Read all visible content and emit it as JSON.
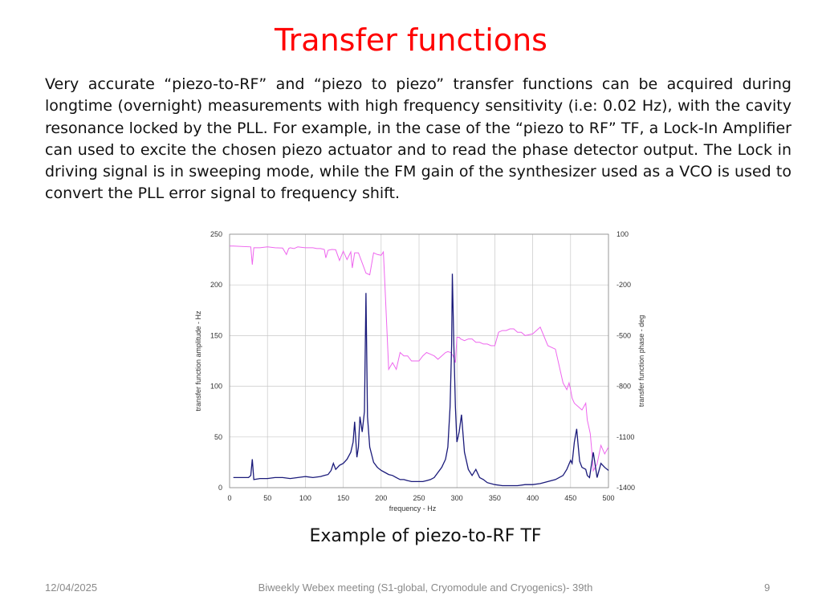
{
  "slide": {
    "title": "Transfer functions",
    "paragraph": "Very accurate “piezo-to-RF” and “piezo to piezo” transfer functions can be acquired during longtime (overnight) measurements with high frequency sensitivity (i.e: 0.02 Hz), with the cavity resonance locked by the PLL. For example, in the case of the “piezo to RF” TF, a Lock-In Amplifier can used to excite the chosen piezo actuator and to read the phase detector output. The Lock in driving signal is in sweeping mode, while the FM gain of the synthesizer used as a VCO is used to convert the PLL error signal to frequency shift.",
    "caption": "Example of piezo-to-RF TF",
    "footer_date": "12/04/2025",
    "footer_text": "Biweekly Webex meeting (S1-global, Cryomodule and Cryogenics)- 39th",
    "page_number": "9"
  },
  "colors": {
    "title": "#ff0000",
    "amplitude": "#1a1a7a",
    "phase": "#ee66ee",
    "grid": "#c8c8c8"
  },
  "chart_data": {
    "type": "line",
    "xlabel": "frequency - Hz",
    "ylabel": "transfer function amplitude - Hz",
    "y2label": "transfer function phase - deg",
    "xlim": [
      0,
      500
    ],
    "ylim": [
      0,
      250
    ],
    "y2lim": [
      -1400,
      100
    ],
    "xticks": [
      "0",
      "50",
      "100",
      "150",
      "200",
      "250",
      "300",
      "350",
      "400",
      "450",
      "500"
    ],
    "yticks": [
      "0",
      "50",
      "100",
      "150",
      "200",
      "250"
    ],
    "y2ticks": [
      "-1400",
      "-1100",
      "-800",
      "-500",
      "-200",
      "100"
    ],
    "grid": true,
    "series": [
      {
        "axis": "left",
        "x": [
          5,
          25,
          28,
          30,
          32,
          40,
          50,
          60,
          70,
          80,
          90,
          100,
          110,
          120,
          125,
          130,
          134,
          137,
          140,
          145,
          150,
          155,
          160,
          163,
          165,
          168,
          170,
          172,
          175,
          178,
          180,
          182,
          185,
          190,
          195,
          200,
          205,
          210,
          215,
          220,
          225,
          230,
          235,
          240,
          245,
          250,
          255,
          260,
          265,
          270,
          275,
          280,
          285,
          288,
          291,
          293,
          294,
          296,
          298,
          300,
          303,
          306,
          310,
          315,
          320,
          325,
          330,
          335,
          340,
          350,
          360,
          370,
          380,
          390,
          400,
          410,
          420,
          430,
          440,
          445,
          450,
          452,
          455,
          458,
          460,
          462,
          465,
          470,
          472,
          475,
          480,
          485,
          490,
          495,
          500
        ],
        "y": [
          10,
          10,
          12,
          28,
          8,
          9,
          9,
          10,
          10,
          9,
          10,
          11,
          10,
          11,
          12,
          13,
          17,
          24,
          18,
          22,
          24,
          28,
          35,
          45,
          65,
          30,
          40,
          70,
          55,
          75,
          192,
          70,
          40,
          25,
          20,
          17,
          15,
          13,
          12,
          10,
          8,
          8,
          7,
          6,
          6,
          6,
          6,
          7,
          8,
          10,
          15,
          20,
          28,
          40,
          80,
          140,
          211,
          140,
          80,
          45,
          55,
          72,
          35,
          18,
          12,
          18,
          10,
          8,
          5,
          3,
          2,
          2,
          2,
          3,
          3,
          4,
          6,
          8,
          12,
          18,
          27,
          24,
          45,
          58,
          42,
          26,
          20,
          18,
          12,
          10,
          35,
          10,
          24,
          20,
          17
        ]
      },
      {
        "axis": "right",
        "x": [
          0,
          5,
          28,
          30,
          32,
          40,
          50,
          60,
          70,
          75,
          78,
          80,
          85,
          90,
          95,
          100,
          105,
          110,
          115,
          120,
          125,
          127,
          130,
          135,
          140,
          145,
          150,
          155,
          160,
          162,
          165,
          170,
          175,
          180,
          185,
          190,
          195,
          200,
          203,
          205,
          210,
          215,
          220,
          225,
          230,
          235,
          240,
          245,
          250,
          255,
          260,
          265,
          270,
          275,
          280,
          285,
          288,
          292,
          295,
          298,
          300,
          303,
          305,
          310,
          315,
          320,
          325,
          330,
          335,
          340,
          345,
          350,
          355,
          360,
          365,
          370,
          375,
          380,
          385,
          390,
          400,
          410,
          420,
          430,
          440,
          445,
          448,
          450,
          452,
          455,
          460,
          465,
          470,
          472,
          474,
          476,
          478,
          480,
          485,
          490,
          495,
          500
        ],
        "y": [
          30,
          30,
          25,
          -80,
          20,
          20,
          25,
          20,
          18,
          -20,
          15,
          20,
          15,
          25,
          22,
          20,
          20,
          20,
          15,
          15,
          10,
          -40,
          5,
          10,
          8,
          -55,
          0,
          -50,
          -5,
          -100,
          -10,
          -10,
          -70,
          -130,
          -140,
          -10,
          -20,
          -25,
          -5,
          -200,
          -700,
          -660,
          -700,
          -600,
          -620,
          -620,
          -650,
          -650,
          -650,
          -620,
          -600,
          -610,
          -620,
          -640,
          -620,
          -600,
          -595,
          -600,
          -620,
          -660,
          -510,
          -510,
          -520,
          -530,
          -520,
          -520,
          -540,
          -540,
          -550,
          -550,
          -560,
          -560,
          -480,
          -470,
          -470,
          -460,
          -460,
          -480,
          -480,
          -500,
          -490,
          -450,
          -560,
          -580,
          -780,
          -820,
          -780,
          -820,
          -870,
          -900,
          -920,
          -940,
          -900,
          -1000,
          -1040,
          -1080,
          -1180,
          -1300,
          -1260,
          -1150,
          -1200,
          -1160
        ]
      }
    ]
  }
}
